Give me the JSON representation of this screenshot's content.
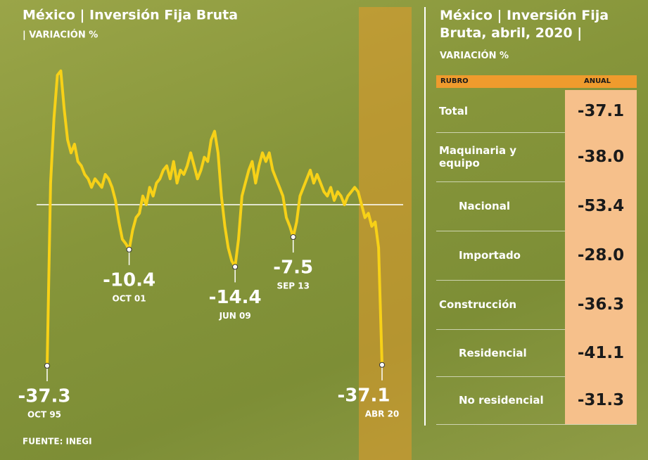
{
  "chart_data": {
    "type": "line",
    "title": "México | Inversión Fija Bruta",
    "subtitle": "| VARIACIÓN %",
    "source": "FUENTE: INEGI",
    "color": "#f7d117",
    "categories": [
      "OCT 95",
      null,
      null,
      null,
      null,
      null,
      null,
      null,
      null,
      null,
      null,
      null,
      null,
      null,
      null,
      null,
      null,
      null,
      null,
      null,
      null,
      null,
      null,
      null,
      "OCT 01",
      null,
      null,
      null,
      null,
      null,
      null,
      null,
      null,
      null,
      null,
      null,
      null,
      null,
      null,
      null,
      null,
      null,
      null,
      null,
      null,
      null,
      null,
      null,
      null,
      null,
      null,
      null,
      null,
      null,
      null,
      "JUN 09",
      null,
      null,
      null,
      null,
      null,
      null,
      null,
      null,
      null,
      null,
      null,
      null,
      null,
      null,
      null,
      null,
      "SEP 13",
      null,
      null,
      null,
      null,
      null,
      null,
      null,
      null,
      null,
      null,
      null,
      null,
      null,
      null,
      null,
      null,
      null,
      null,
      null,
      null,
      null,
      null,
      null,
      null,
      null,
      "ABR 20"
    ],
    "values": [
      -37.3,
      5,
      20,
      30,
      31,
      22,
      15,
      12,
      14,
      10,
      9,
      7,
      6,
      4,
      6,
      5,
      4,
      7,
      6,
      4,
      1,
      -4,
      -8,
      -9,
      -10.4,
      -6,
      -3,
      -2,
      2,
      0,
      4,
      2,
      5,
      6,
      8,
      9,
      6,
      10,
      5,
      8,
      7,
      9,
      12,
      9,
      6,
      8,
      11,
      10,
      15,
      17,
      12,
      2,
      -5,
      -10,
      -13,
      -14.4,
      -8,
      2,
      5,
      8,
      10,
      5,
      9,
      12,
      10,
      12,
      8,
      6,
      4,
      2,
      -3,
      -5,
      -7.5,
      -4,
      2,
      4,
      6,
      8,
      5,
      7,
      5,
      3,
      2,
      4,
      1,
      3,
      2,
      0,
      2,
      3,
      4,
      3,
      0,
      -3,
      -2,
      -5,
      -4,
      -10,
      -37.1
    ]
  },
  "table": {
    "title": "México | Inversión Fija Bruta, abril, 2020 |",
    "subtitle": "VARIACIÓN %",
    "header": [
      "RUBRO",
      "ANUAL"
    ],
    "rows": [
      [
        "Total",
        "-37.1"
      ],
      [
        "Maquinaria y equipo",
        "-38.0"
      ],
      [
        "Nacional",
        "-53.4"
      ],
      [
        "Importado",
        "-28.0"
      ],
      [
        "Construcción",
        "-36.3"
      ],
      [
        "Residencial",
        "-41.1"
      ],
      [
        "No residencial",
        "-31.3"
      ]
    ]
  }
}
